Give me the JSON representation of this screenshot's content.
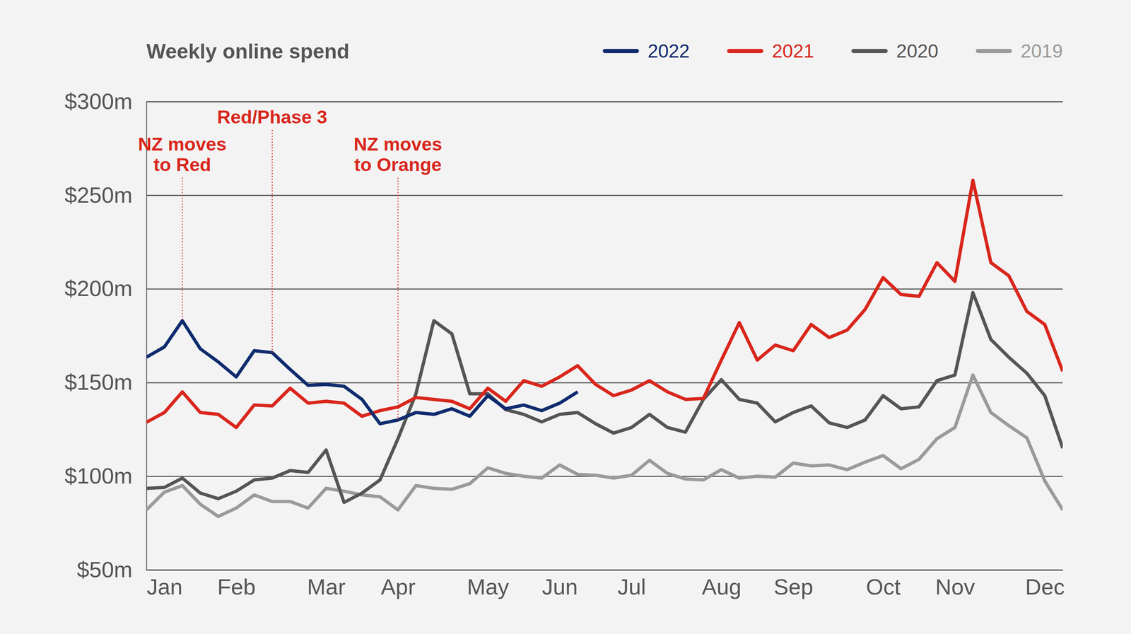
{
  "chart_data": {
    "type": "line",
    "title": "Weekly online spend",
    "categories": [
      null,
      "Jan",
      null,
      null,
      null,
      "Feb",
      null,
      null,
      null,
      null,
      "Mar",
      null,
      null,
      null,
      "Apr",
      null,
      null,
      null,
      null,
      "May",
      null,
      null,
      null,
      "Jun",
      null,
      null,
      null,
      "Jul",
      null,
      null,
      null,
      null,
      "Aug",
      null,
      null,
      null,
      "Sep",
      null,
      null,
      null,
      null,
      "Oct",
      null,
      null,
      null,
      "Nov",
      null,
      null,
      null,
      null,
      "Dec",
      null
    ],
    "ylim": [
      50,
      300
    ],
    "yticks": [
      {
        "value": 50,
        "label": "$50m"
      },
      {
        "value": 100,
        "label": "$100m"
      },
      {
        "value": 150,
        "label": "$150m"
      },
      {
        "value": 200,
        "label": "$200m"
      },
      {
        "value": 250,
        "label": "$250m"
      },
      {
        "value": 300,
        "label": "$300m"
      }
    ],
    "grid": true,
    "legend": "top-right",
    "series": [
      {
        "name": "2022",
        "color": "#0f2b6e",
        "values": [
          163.5,
          169,
          183,
          168,
          161,
          153,
          167,
          166,
          157,
          148.5,
          149,
          148,
          141,
          128,
          130,
          134,
          133,
          136,
          132,
          143,
          136,
          138,
          135,
          139,
          145,
          null,
          null,
          null,
          null,
          null,
          null,
          null,
          null,
          null,
          null,
          null,
          null,
          null,
          null,
          null,
          null,
          null,
          null,
          null,
          null,
          null,
          null,
          null,
          null,
          null,
          null,
          null
        ]
      },
      {
        "name": "2021",
        "color": "#d9261c",
        "values": [
          128.8,
          134,
          145,
          134,
          133,
          126,
          138,
          137.5,
          147,
          139,
          140,
          139,
          132,
          135,
          137,
          142,
          141,
          140,
          136,
          147,
          140,
          151,
          148,
          153,
          159,
          149,
          143,
          146,
          151,
          145,
          141,
          141.5,
          162,
          182,
          162,
          170,
          167,
          181,
          174,
          178,
          189,
          206,
          197,
          196,
          214,
          204,
          258,
          214,
          207,
          188,
          181,
          156
        ]
      },
      {
        "name": "2020",
        "color": "#555555",
        "values": [
          93.5,
          94,
          99,
          91,
          88,
          92,
          98,
          99,
          103,
          102,
          114,
          86,
          91,
          98,
          120,
          144,
          183,
          176,
          144,
          144,
          135.5,
          133,
          129,
          133,
          134,
          128,
          123,
          126,
          133,
          126,
          123.5,
          141,
          151.5,
          141,
          139,
          129,
          134,
          137.5,
          128.5,
          126,
          130,
          143,
          136,
          137,
          151,
          154,
          198,
          173,
          163.5,
          155,
          143,
          115
        ]
      },
      {
        "name": "2019",
        "color": "#9a9a9a",
        "values": [
          82,
          91.5,
          95,
          85,
          78.5,
          83,
          90,
          86.5,
          86.5,
          83,
          93.5,
          92,
          90,
          89,
          82,
          95,
          93.5,
          93,
          96,
          104.5,
          101.5,
          100,
          99,
          106,
          101,
          100.5,
          99,
          100.5,
          108.5,
          101.5,
          98.5,
          98,
          103.5,
          99,
          100,
          99.5,
          107,
          105.5,
          106,
          103.5,
          107.5,
          111,
          104,
          109,
          120,
          126,
          154,
          134,
          127,
          120.5,
          97.5,
          82
        ]
      }
    ],
    "annotations": [
      {
        "text": [
          "NZ moves",
          "to Red"
        ],
        "x": 2,
        "color": "#d9261c"
      },
      {
        "text": [
          "Red/Phase 3"
        ],
        "x": 7,
        "color": "#d9261c"
      },
      {
        "text": [
          "NZ moves",
          "to Orange"
        ],
        "x": 14,
        "color": "#d9261c"
      }
    ]
  }
}
